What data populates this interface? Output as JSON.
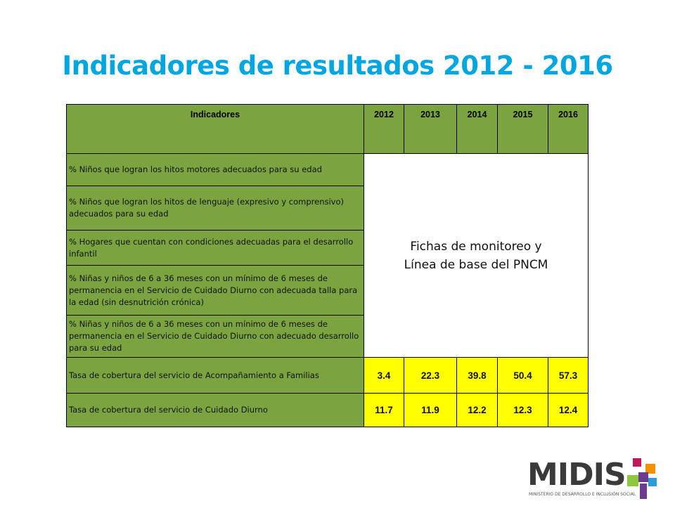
{
  "title": "Indicadores de resultados 2012 - 2016",
  "table": {
    "header": {
      "indicator_col": "Indicadores",
      "years": [
        "2012",
        "2013",
        "2014",
        "2015",
        "2016"
      ]
    },
    "rows": [
      {
        "label": "% Niños que logran los hitos motores adecuados para su edad"
      },
      {
        "label": "% Niños que logran los hitos de lenguaje (expresivo y comprensivo) adecuados para su edad"
      },
      {
        "label": "% Hogares que cuentan con condiciones adecuadas para el desarrollo infantil"
      },
      {
        "label": "% Niñas y niños de 6 a 36 meses con un mínimo de 6 meses de permanencia en el Servicio de Cuidado Diurno con adecuada talla para la edad (sin desnutrición crónica)"
      },
      {
        "label": "% Niñas y niños de 6 a 36 meses con un mínimo de 6 meses de permanencia en el Servicio de Cuidado Diurno con adecuado desarrollo para su edad"
      },
      {
        "label": "Tasa de cobertura del servicio de Acompañamiento a Familias",
        "values": [
          "3.4",
          "22.3",
          "39.8",
          "50.4",
          "57.3"
        ]
      },
      {
        "label": "Tasa de cobertura del servicio de Cuidado Diurno",
        "values": [
          "11.7",
          "11.9",
          "12.2",
          "12.3",
          "12.4"
        ]
      }
    ],
    "merged_note_line1": "Fichas de monitoreo y",
    "merged_note_line2": "Línea de base del PNCM"
  },
  "logo": {
    "text": "MIDIS",
    "subtitle": "MINISTERIO DE DESARROLLO E INCLUSIÓN SOCIAL",
    "colors": {
      "text": "#3a3a3a",
      "magenta": "#C2185B",
      "orange": "#F39200",
      "green": "#8DC63F",
      "blue": "#2E9BD6",
      "purple": "#6A3D8F"
    }
  },
  "colors": {
    "title": "#00A6E0",
    "header_bg": "#7BA440",
    "label_bg": "#7BA440",
    "value_bg": "#FFFF00"
  }
}
